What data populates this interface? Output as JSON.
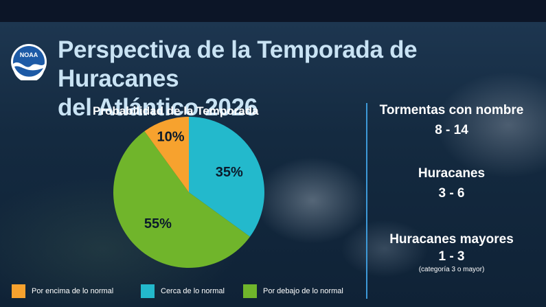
{
  "logo": {
    "text": "NOAA",
    "icon": "noaa-logo-icon"
  },
  "title": {
    "line1": "Perspectiva de la Temporada de Huracanes",
    "line2": "del Atlántico 2026"
  },
  "colors": {
    "above": "#f7a22e",
    "near": "#23b9cc",
    "below": "#70b52b",
    "title": "#c9e3f4",
    "divider": "#3d9ad9"
  },
  "chart_data": {
    "type": "pie",
    "title": "Probabilidad de la Temporada",
    "slices": [
      {
        "label": "Por encima de lo normal",
        "value": 10,
        "display": "10%",
        "color": "#f7a22e"
      },
      {
        "label": "Cerca de lo normal",
        "value": 35,
        "display": "35%",
        "color": "#23b9cc"
      },
      {
        "label": "Por debajo de lo normal",
        "value": 55,
        "display": "55%",
        "color": "#70b52b"
      }
    ],
    "legend_position": "bottom"
  },
  "stats": [
    {
      "label": "Tormentas con nombre",
      "value": "8 - 14",
      "note": ""
    },
    {
      "label": "Huracanes",
      "value": "3 - 6",
      "note": ""
    },
    {
      "label": "Huracanes mayores",
      "value": "1 - 3",
      "note": "(categoría 3 o mayor)"
    }
  ]
}
